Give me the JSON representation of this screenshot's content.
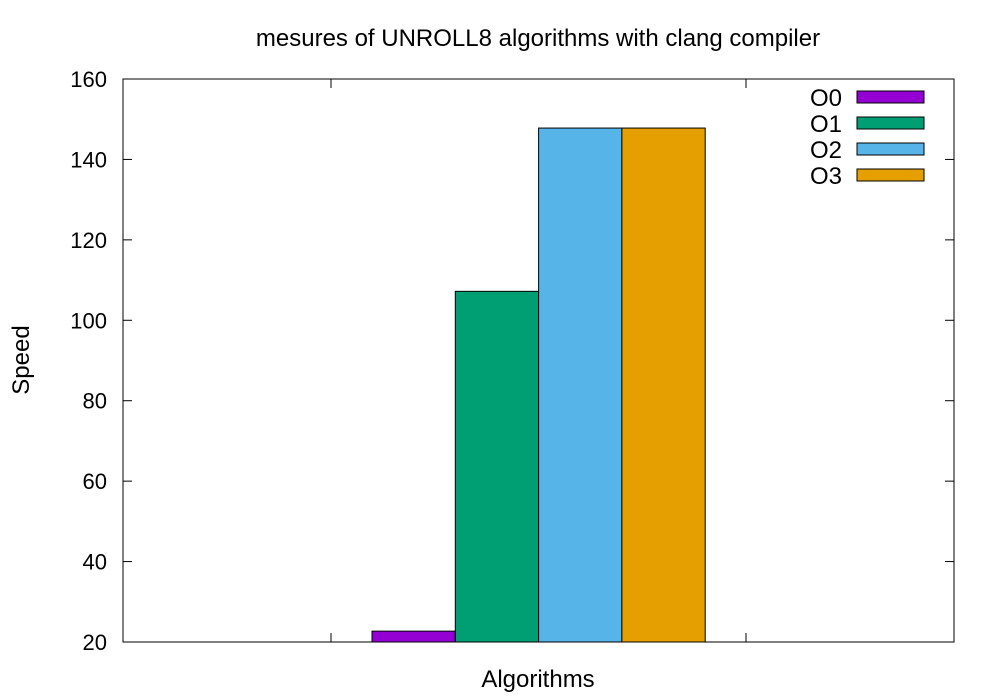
{
  "chart_data": {
    "type": "bar",
    "title": "mesures of UNROLL8 algorithms with clang compiler",
    "xlabel": "Algorithms",
    "ylabel": "Speed",
    "ylim": [
      20,
      160
    ],
    "yticks": [
      20,
      40,
      60,
      80,
      100,
      120,
      140,
      160
    ],
    "grid": false,
    "legend_position": "top-right",
    "categories": [
      ""
    ],
    "series": [
      {
        "name": "O0",
        "values": [
          22.7
        ],
        "color": "#9400d3"
      },
      {
        "name": "O1",
        "values": [
          107.2
        ],
        "color": "#009e73"
      },
      {
        "name": "O2",
        "values": [
          147.8
        ],
        "color": "#56b4e9"
      },
      {
        "name": "O3",
        "values": [
          147.8
        ],
        "color": "#e69f00"
      }
    ]
  }
}
